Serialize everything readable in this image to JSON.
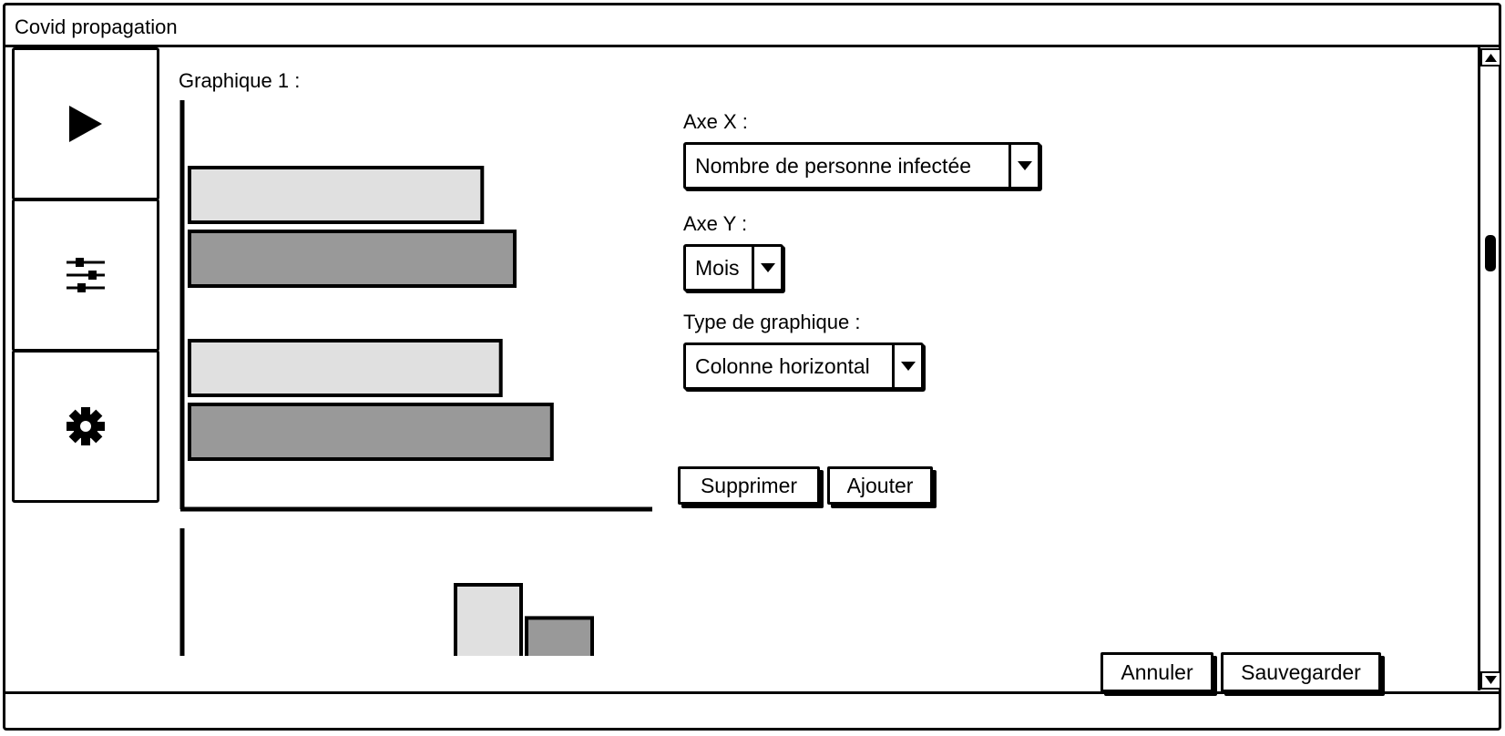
{
  "window": {
    "title": "Covid propagation"
  },
  "sidebar": {
    "items": [
      {
        "name": "play",
        "icon": "play-icon"
      },
      {
        "name": "filters",
        "icon": "sliders-icon"
      },
      {
        "name": "settings",
        "icon": "gear-icon"
      }
    ]
  },
  "graph": {
    "label": "Graphique 1 :"
  },
  "chart_data": [
    {
      "type": "bar",
      "orientation": "horizontal",
      "series": [
        {
          "values": [
            6.3,
            6.7
          ],
          "color": "#e0e0e0"
        },
        {
          "values": [
            7.0,
            7.8
          ],
          "color": "#999999"
        }
      ],
      "xlim": [
        0,
        10
      ],
      "grid": false
    },
    {
      "type": "bar",
      "orientation": "vertical",
      "partially_visible": true,
      "series": [
        {
          "values": [
            0,
            3.5
          ],
          "color": "#e0e0e0"
        },
        {
          "values": [
            0.6,
            2.2
          ],
          "color": "#999999"
        }
      ],
      "grid": false
    }
  ],
  "form": {
    "axe_x_label": "Axe X :",
    "axe_x_value": "Nombre de personne infectée",
    "axe_y_label": "Axe Y :",
    "axe_y_value": "Mois",
    "type_label": "Type de graphique :",
    "type_value": "Colonne horizontal",
    "delete_label": "Supprimer",
    "add_label": "Ajouter"
  },
  "footer": {
    "cancel_label": "Annuler",
    "save_label": "Sauvegarder"
  },
  "colors": {
    "bar_light": "#e0e0e0",
    "bar_dark": "#999999",
    "stroke": "#000000"
  }
}
